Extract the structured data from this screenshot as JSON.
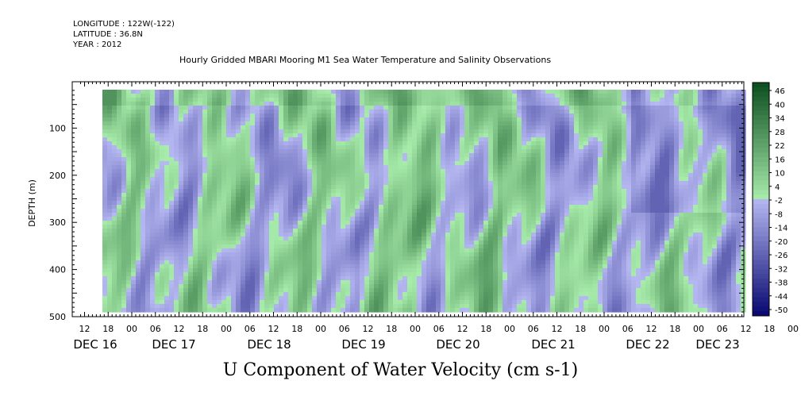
{
  "header": {
    "longitude": "LONGITUDE : 122W(-122)",
    "latitude": "LATITUDE : 36.8N",
    "year": "YEAR : 2012"
  },
  "chart_data": {
    "type": "heatmap",
    "title": "Hourly Gridded MBARI Mooring M1 Sea Water Temperature and Salinity Observations",
    "xlabel_bottom": "U Component of Water Velocity (cm s-1)",
    "ylabel": "DEPTH (m)",
    "y_range": [
      500,
      20
    ],
    "y_ticks": [
      100,
      200,
      300,
      400,
      500
    ],
    "x_hour_ticks": [
      "12",
      "18",
      "00",
      "06",
      "12",
      "18",
      "00",
      "06",
      "12",
      "18",
      "00",
      "06",
      "12",
      "18",
      "00",
      "06",
      "12",
      "18",
      "00",
      "06",
      "12",
      "18",
      "00",
      "06",
      "12",
      "18",
      "00",
      "06",
      "12",
      "18",
      "00",
      "06"
    ],
    "x_day_labels": [
      "DEC 16",
      "DEC 17",
      "DEC 18",
      "DEC 19",
      "DEC 20",
      "DEC 21",
      "DEC 22",
      "DEC 23"
    ],
    "colorbar_labels": [
      "46",
      "40",
      "34",
      "28",
      "22",
      "16",
      "10",
      "4",
      "-2",
      "-8",
      "-14",
      "-20",
      "-26",
      "-32",
      "-38",
      "-44",
      "-50"
    ],
    "colorbar_range": [
      -50,
      50
    ],
    "colors": {
      "positive_strong": "#0b4d1e",
      "positive_light": "#a8ecab",
      "negative_light": "#b6b8f2",
      "negative_strong": "#06066f"
    }
  }
}
